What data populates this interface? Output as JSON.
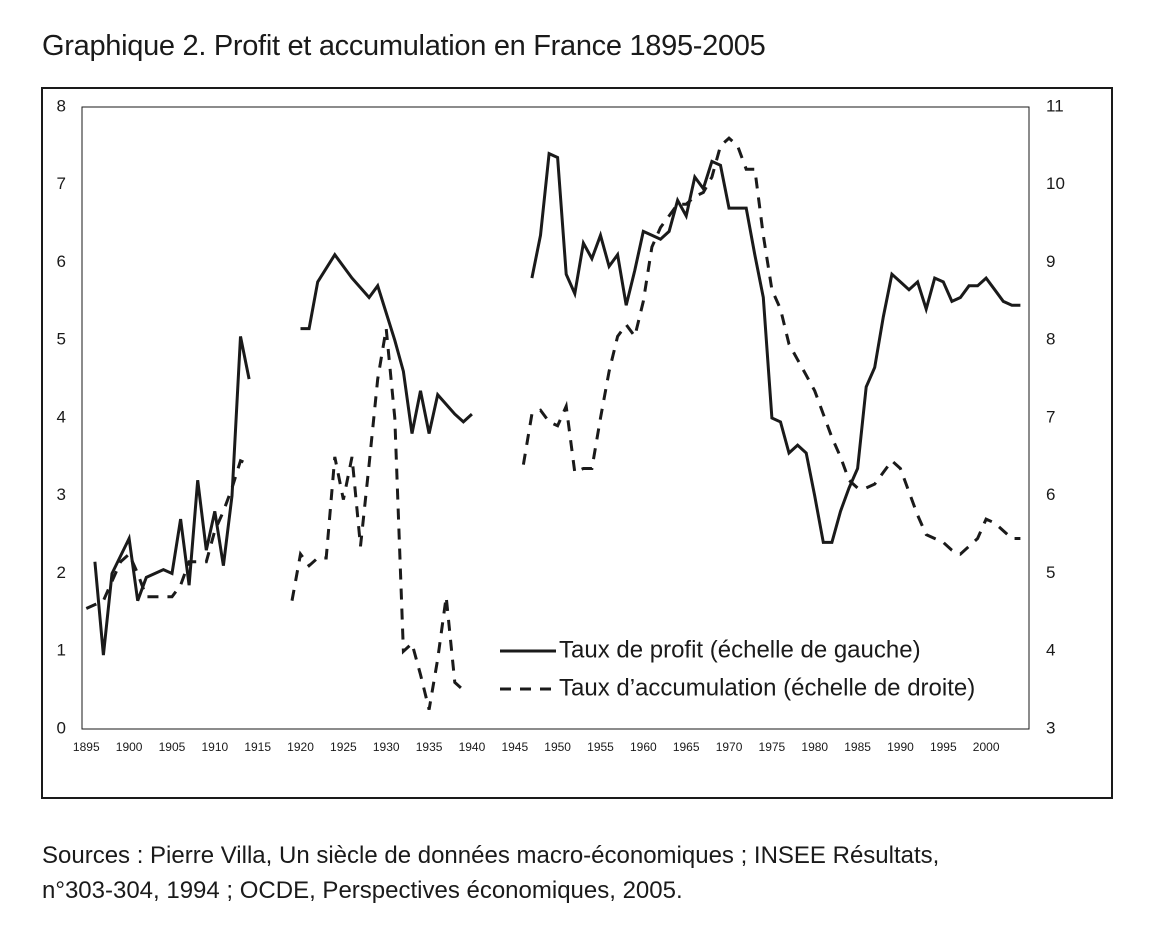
{
  "title": "Graphique 2. Profit et accumulation en France 1895-2005",
  "sources_line1": "Sources : Pierre Villa, Un siècle de données macro-économiques ; INSEE Résultats,",
  "sources_line2": "n°303-304, 1994 ; OCDE, Perspectives économiques, 2005.",
  "chart_data": {
    "type": "line",
    "x_ticks": [
      1895,
      1900,
      1905,
      1910,
      1915,
      1920,
      1925,
      1930,
      1935,
      1940,
      1945,
      1950,
      1955,
      1960,
      1965,
      1970,
      1975,
      1980,
      1985,
      1990,
      1995,
      2000
    ],
    "y_left_ticks": [
      0,
      1,
      2,
      3,
      4,
      5,
      6,
      7,
      8
    ],
    "y_right_ticks": [
      3,
      4,
      5,
      6,
      7,
      8,
      9,
      10,
      11
    ],
    "ylim_left": [
      0,
      8
    ],
    "ylim_right": [
      3,
      11
    ],
    "xlim": [
      1894.5,
      2005
    ],
    "grid": false,
    "legend_position": "bottom-right",
    "series": [
      {
        "name": "Taux de profit (échelle de gauche)",
        "axis": "left",
        "style": "solid",
        "color": "#1a1a1a",
        "segments": [
          [
            [
              1896,
              2.15
            ],
            [
              1897,
              0.95
            ],
            [
              1898,
              2.0
            ],
            [
              1900,
              2.45
            ],
            [
              1901,
              1.65
            ],
            [
              1902,
              1.95
            ],
            [
              1904,
              2.05
            ],
            [
              1905,
              2.0
            ],
            [
              1906,
              2.7
            ],
            [
              1907,
              1.85
            ],
            [
              1908,
              3.2
            ],
            [
              1909,
              2.3
            ],
            [
              1910,
              2.8
            ],
            [
              1911,
              2.1
            ],
            [
              1912,
              3.0
            ],
            [
              1913,
              5.05
            ],
            [
              1914,
              4.5
            ]
          ],
          [
            [
              1920,
              5.15
            ],
            [
              1921,
              5.15
            ],
            [
              1922,
              5.75
            ],
            [
              1924,
              6.1
            ],
            [
              1926,
              5.8
            ],
            [
              1928,
              5.55
            ],
            [
              1929,
              5.7
            ],
            [
              1931,
              5.0
            ],
            [
              1932,
              4.6
            ],
            [
              1933,
              3.8
            ],
            [
              1934,
              4.35
            ],
            [
              1935,
              3.8
            ],
            [
              1936,
              4.3
            ],
            [
              1938,
              4.05
            ],
            [
              1939,
              3.95
            ],
            [
              1940,
              4.05
            ]
          ],
          [
            [
              1947,
              5.8
            ],
            [
              1948,
              6.35
            ],
            [
              1949,
              7.4
            ],
            [
              1950,
              7.35
            ],
            [
              1951,
              5.85
            ],
            [
              1952,
              5.6
            ],
            [
              1953,
              6.25
            ],
            [
              1954,
              6.05
            ],
            [
              1955,
              6.35
            ],
            [
              1956,
              5.95
            ],
            [
              1957,
              6.1
            ],
            [
              1958,
              5.45
            ],
            [
              1959,
              5.9
            ],
            [
              1960,
              6.4
            ],
            [
              1961,
              6.35
            ],
            [
              1962,
              6.3
            ],
            [
              1963,
              6.4
            ],
            [
              1964,
              6.8
            ],
            [
              1965,
              6.6
            ],
            [
              1966,
              7.1
            ],
            [
              1967,
              6.95
            ],
            [
              1968,
              7.3
            ],
            [
              1969,
              7.25
            ],
            [
              1970,
              6.7
            ],
            [
              1971,
              6.7
            ],
            [
              1972,
              6.7
            ],
            [
              1973,
              6.1
            ],
            [
              1974,
              5.55
            ],
            [
              1975,
              4.0
            ],
            [
              1976,
              3.95
            ],
            [
              1977,
              3.55
            ],
            [
              1978,
              3.65
            ],
            [
              1979,
              3.55
            ],
            [
              1980,
              3.0
            ],
            [
              1981,
              2.4
            ],
            [
              1982,
              2.4
            ],
            [
              1983,
              2.8
            ],
            [
              1984,
              3.1
            ],
            [
              1985,
              3.35
            ],
            [
              1986,
              4.4
            ],
            [
              1987,
              4.65
            ],
            [
              1988,
              5.3
            ],
            [
              1989,
              5.85
            ],
            [
              1990,
              5.75
            ],
            [
              1991,
              5.65
            ],
            [
              1992,
              5.75
            ],
            [
              1993,
              5.4
            ],
            [
              1994,
              5.8
            ],
            [
              1995,
              5.75
            ],
            [
              1996,
              5.5
            ],
            [
              1997,
              5.55
            ],
            [
              1998,
              5.7
            ],
            [
              1999,
              5.7
            ],
            [
              2000,
              5.8
            ],
            [
              2001,
              5.65
            ],
            [
              2002,
              5.5
            ],
            [
              2003,
              5.45
            ],
            [
              2004,
              5.45
            ]
          ]
        ]
      },
      {
        "name": "Taux d’accumulation (échelle de droite)",
        "axis": "right",
        "style": "dashed",
        "color": "#1a1a1a",
        "segments": [
          [
            [
              1895,
              4.55
            ],
            [
              1896,
              4.6
            ],
            [
              1897,
              4.65
            ],
            [
              1898,
              4.9
            ],
            [
              1899,
              5.15
            ],
            [
              1900,
              5.25
            ],
            [
              1901,
              5.0
            ],
            [
              1902,
              4.7
            ],
            [
              1903,
              4.7
            ],
            [
              1904,
              4.7
            ],
            [
              1905,
              4.7
            ],
            [
              1906,
              4.85
            ],
            [
              1907,
              5.15
            ],
            [
              1908,
              5.15
            ],
            [
              1909,
              5.15
            ],
            [
              1910,
              5.55
            ],
            [
              1911,
              5.8
            ],
            [
              1912,
              6.1
            ],
            [
              1913,
              6.45
            ],
            [
              1914,
              6.4
            ]
          ],
          [
            [
              1919,
              4.65
            ],
            [
              1920,
              5.25
            ],
            [
              1921,
              5.1
            ],
            [
              1922,
              5.2
            ],
            [
              1923,
              5.2
            ],
            [
              1924,
              6.5
            ],
            [
              1925,
              5.95
            ],
            [
              1926,
              6.5
            ],
            [
              1927,
              5.35
            ],
            [
              1928,
              6.4
            ],
            [
              1929,
              7.5
            ],
            [
              1930,
              8.15
            ],
            [
              1931,
              7.0
            ],
            [
              1932,
              4.0
            ],
            [
              1933,
              4.1
            ],
            [
              1934,
              3.7
            ],
            [
              1935,
              3.25
            ],
            [
              1936,
              3.9
            ],
            [
              1937,
              4.7
            ],
            [
              1938,
              3.6
            ],
            [
              1939,
              3.5
            ]
          ],
          [
            [
              1946,
              6.4
            ],
            [
              1947,
              7.05
            ],
            [
              1948,
              7.1
            ],
            [
              1949,
              6.95
            ],
            [
              1950,
              6.9
            ],
            [
              1951,
              7.15
            ],
            [
              1952,
              6.3
            ],
            [
              1953,
              6.35
            ],
            [
              1954,
              6.35
            ],
            [
              1955,
              7.0
            ],
            [
              1956,
              7.6
            ],
            [
              1957,
              8.05
            ],
            [
              1958,
              8.2
            ],
            [
              1959,
              8.05
            ],
            [
              1960,
              8.5
            ],
            [
              1961,
              9.2
            ],
            [
              1962,
              9.45
            ],
            [
              1963,
              9.6
            ],
            [
              1964,
              9.75
            ],
            [
              1965,
              9.75
            ],
            [
              1966,
              9.85
            ],
            [
              1967,
              9.9
            ],
            [
              1968,
              10.1
            ],
            [
              1969,
              10.5
            ],
            [
              1970,
              10.6
            ],
            [
              1971,
              10.5
            ],
            [
              1972,
              10.2
            ],
            [
              1973,
              10.2
            ],
            [
              1974,
              9.35
            ],
            [
              1975,
              8.65
            ],
            [
              1976,
              8.4
            ],
            [
              1977,
              7.95
            ],
            [
              1978,
              7.75
            ],
            [
              1979,
              7.55
            ],
            [
              1980,
              7.35
            ],
            [
              1981,
              7.05
            ],
            [
              1982,
              6.75
            ],
            [
              1983,
              6.5
            ],
            [
              1984,
              6.2
            ],
            [
              1985,
              6.1
            ],
            [
              1986,
              6.1
            ],
            [
              1987,
              6.15
            ],
            [
              1988,
              6.3
            ],
            [
              1989,
              6.45
            ],
            [
              1990,
              6.35
            ],
            [
              1991,
              6.05
            ],
            [
              1992,
              5.75
            ],
            [
              1993,
              5.5
            ],
            [
              1994,
              5.45
            ],
            [
              1995,
              5.4
            ],
            [
              1996,
              5.3
            ],
            [
              1997,
              5.25
            ],
            [
              1998,
              5.35
            ],
            [
              1999,
              5.45
            ],
            [
              2000,
              5.7
            ],
            [
              2001,
              5.65
            ],
            [
              2002,
              5.55
            ],
            [
              2003,
              5.45
            ],
            [
              2004,
              5.45
            ]
          ]
        ]
      }
    ]
  }
}
